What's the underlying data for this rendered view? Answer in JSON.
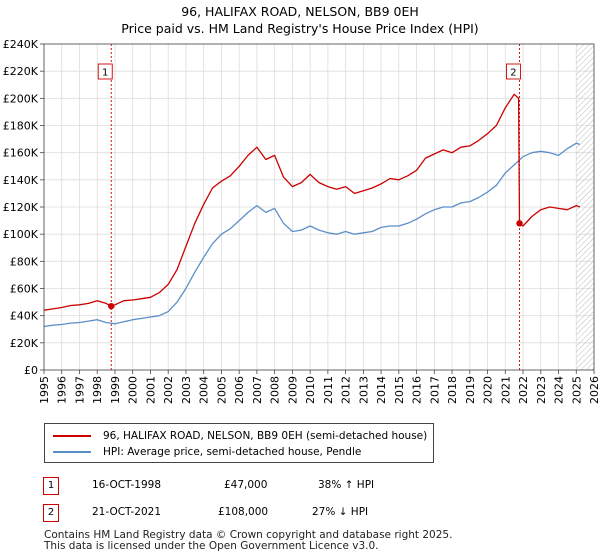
{
  "title": "96, HALIFAX ROAD, NELSON, BB9 0EH",
  "subtitle": "Price paid vs. HM Land Registry's House Price Index (HPI)",
  "colors": {
    "property": "#cc0000",
    "hpi": "#5b8fc9",
    "grid": "#dddddd",
    "hatch": "#bbbbbb"
  },
  "chart_data": {
    "type": "line",
    "title": "Price paid vs. HM Land Registry's House Price Index (HPI)",
    "xlabel": "",
    "ylabel": "",
    "xlim": [
      1995,
      2026
    ],
    "ylim": [
      0,
      240000
    ],
    "y_ticks": [
      0,
      20000,
      40000,
      60000,
      80000,
      100000,
      120000,
      140000,
      160000,
      180000,
      200000,
      220000,
      240000
    ],
    "y_tick_labels": [
      "£0",
      "£20K",
      "£40K",
      "£60K",
      "£80K",
      "£100K",
      "£120K",
      "£140K",
      "£160K",
      "£180K",
      "£200K",
      "£220K",
      "£240K"
    ],
    "x_ticks": [
      1995,
      1996,
      1997,
      1998,
      1999,
      2000,
      2001,
      2002,
      2003,
      2004,
      2005,
      2006,
      2007,
      2008,
      2009,
      2010,
      2011,
      2012,
      2013,
      2014,
      2015,
      2016,
      2017,
      2018,
      2019,
      2020,
      2021,
      2022,
      2023,
      2024,
      2025,
      2026
    ],
    "grid": true,
    "forecast_hatch_from": 2025.0,
    "series": [
      {
        "name": "96, HALIFAX ROAD, NELSON, BB9 0EH (semi-detached house)",
        "color": "#cc0000",
        "x": [
          1995,
          1995.5,
          1996,
          1996.5,
          1997,
          1997.5,
          1998,
          1998.5,
          1998.79,
          1999,
          1999.5,
          2000,
          2000.5,
          2001,
          2001.5,
          2002,
          2002.5,
          2003,
          2003.5,
          2004,
          2004.5,
          2005,
          2005.5,
          2006,
          2006.5,
          2007,
          2007.5,
          2008,
          2008.5,
          2009,
          2009.5,
          2010,
          2010.5,
          2011,
          2011.5,
          2012,
          2012.5,
          2013,
          2013.5,
          2014,
          2014.5,
          2015,
          2015.5,
          2016,
          2016.5,
          2017,
          2017.5,
          2018,
          2018.5,
          2019,
          2019.5,
          2020,
          2020.5,
          2021,
          2021.5,
          2021.75,
          2021.8,
          2022,
          2022.5,
          2023,
          2023.5,
          2024,
          2024.5,
          2025,
          2025.2
        ],
        "y": [
          44000,
          45000,
          46000,
          47500,
          48000,
          49000,
          51000,
          49000,
          47000,
          48000,
          51000,
          51500,
          52500,
          53500,
          57000,
          63000,
          74000,
          91000,
          108000,
          122000,
          134000,
          139000,
          143000,
          150000,
          158000,
          164000,
          155000,
          158000,
          142000,
          135000,
          138000,
          144000,
          138000,
          135000,
          133000,
          135000,
          130000,
          132000,
          134000,
          137000,
          141000,
          140000,
          143000,
          147000,
          156000,
          159000,
          162000,
          160000,
          164000,
          165000,
          169000,
          174000,
          180000,
          193000,
          203000,
          200000,
          108000,
          106000,
          113000,
          118000,
          120000,
          119000,
          118000,
          121000,
          120000
        ]
      },
      {
        "name": "HPI: Average price, semi-detached house, Pendle",
        "color": "#5b8fc9",
        "x": [
          1995,
          1995.5,
          1996,
          1996.5,
          1997,
          1997.5,
          1998,
          1998.5,
          1999,
          1999.5,
          2000,
          2000.5,
          2001,
          2001.5,
          2002,
          2002.5,
          2003,
          2003.5,
          2004,
          2004.5,
          2005,
          2005.5,
          2006,
          2006.5,
          2007,
          2007.5,
          2008,
          2008.5,
          2009,
          2009.5,
          2010,
          2010.5,
          2011,
          2011.5,
          2012,
          2012.5,
          2013,
          2013.5,
          2014,
          2014.5,
          2015,
          2015.5,
          2016,
          2016.5,
          2017,
          2017.5,
          2018,
          2018.5,
          2019,
          2019.5,
          2020,
          2020.5,
          2021,
          2021.5,
          2022,
          2022.5,
          2023,
          2023.5,
          2024,
          2024.5,
          2025,
          2025.2
        ],
        "y": [
          32000,
          33000,
          33500,
          34500,
          35000,
          36000,
          37000,
          35000,
          34000,
          35500,
          37000,
          38000,
          39000,
          40000,
          43000,
          50000,
          60000,
          72000,
          83000,
          93000,
          100000,
          104000,
          110000,
          116000,
          121000,
          116000,
          119000,
          108000,
          102000,
          103000,
          106000,
          103000,
          101000,
          100000,
          102000,
          100000,
          101000,
          102000,
          105000,
          106000,
          106000,
          108000,
          111000,
          115000,
          118000,
          120000,
          120000,
          123000,
          124000,
          127000,
          131000,
          136000,
          145000,
          151000,
          157000,
          160000,
          161000,
          160000,
          158000,
          163000,
          167000,
          166000
        ]
      }
    ],
    "annotations": [
      {
        "label": "1",
        "x": 1998.79,
        "y": 47000
      },
      {
        "label": "2",
        "x": 2021.8,
        "y": 108000
      }
    ]
  },
  "legend": {
    "property": "96, HALIFAX ROAD, NELSON, BB9 0EH (semi-detached house)",
    "hpi": "HPI: Average price, semi-detached house, Pendle"
  },
  "sales": [
    {
      "num": "1",
      "date": "16-OCT-1998",
      "price": "£47,000",
      "hpi": "38% ↑ HPI"
    },
    {
      "num": "2",
      "date": "21-OCT-2021",
      "price": "£108,000",
      "hpi": "27% ↓ HPI"
    }
  ],
  "footer": {
    "line1": "Contains HM Land Registry data © Crown copyright and database right 2025.",
    "line2": "This data is licensed under the Open Government Licence v3.0."
  }
}
